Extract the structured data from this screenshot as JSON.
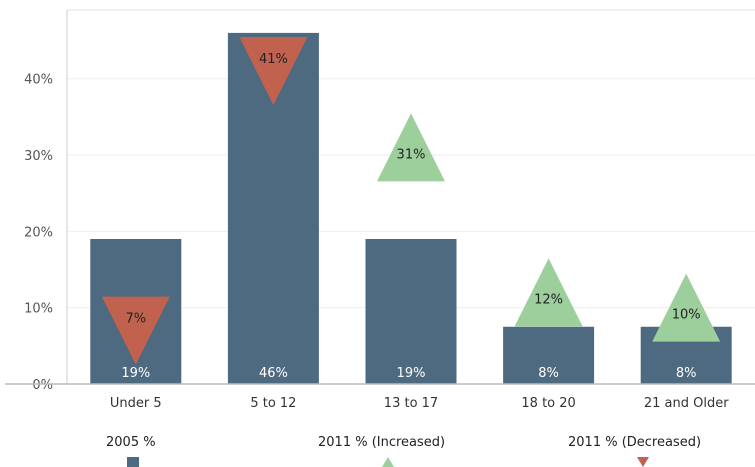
{
  "chart_data": {
    "type": "bar",
    "categories": [
      "Under 5",
      "5 to 12",
      "13 to 17",
      "18 to 20",
      "21 and Older"
    ],
    "ylim": [
      0,
      0.49
    ],
    "yticks": [
      {
        "value": 0,
        "label": "0%"
      },
      {
        "value": 0.1,
        "label": "10%"
      },
      {
        "value": 0.2,
        "label": "20%"
      },
      {
        "value": 0.3,
        "label": "30%"
      },
      {
        "value": 0.4,
        "label": "40%"
      }
    ],
    "grid": true,
    "legend_placement": "bottom",
    "series": [
      {
        "name": "2005 %",
        "mark": "bar",
        "color": "#4e6a80",
        "values": [
          0.19,
          0.46,
          0.19,
          0.075,
          0.075
        ],
        "labels": [
          "19%",
          "46%",
          "19%",
          "8%",
          "8%"
        ]
      },
      {
        "name": "2011 % (Increased)",
        "mark": "triangle-up",
        "color": "#9dcf9d",
        "values": [
          null,
          null,
          0.31,
          0.12,
          0.1
        ],
        "labels": [
          "",
          "",
          "31%",
          "12%",
          "10%"
        ]
      },
      {
        "name": "2011 % (Decreased)",
        "mark": "triangle-down",
        "color": "#c0624e",
        "values": [
          0.07,
          0.41,
          null,
          null,
          null
        ],
        "labels": [
          "7%",
          "41%",
          "",
          "",
          ""
        ]
      }
    ]
  }
}
